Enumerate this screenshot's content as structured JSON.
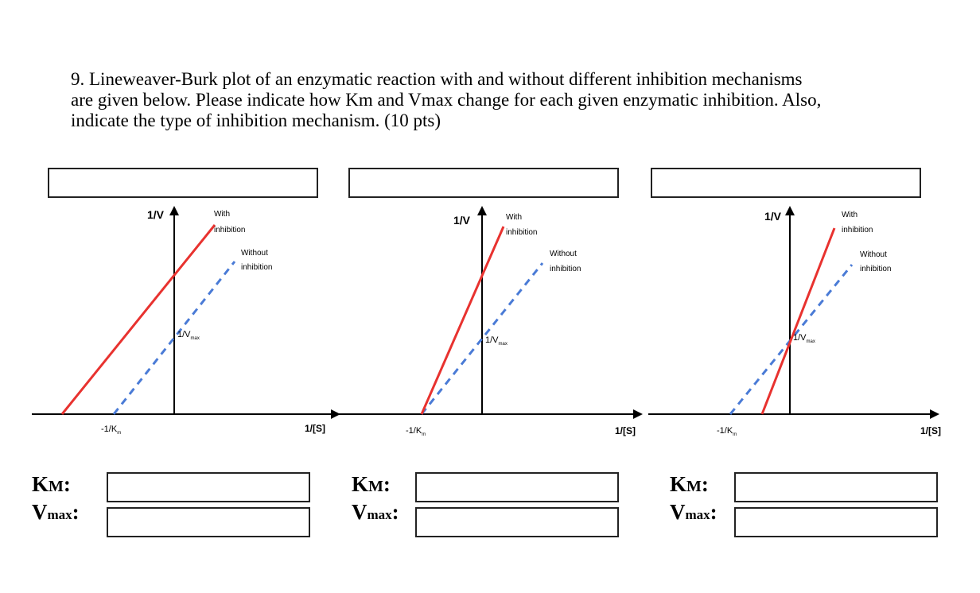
{
  "question": {
    "lines": [
      "9. Lineweaver-Burk plot of an enzymatic reaction with and without different inhibition mechanisms",
      "are given below. Please indicate how Km and Vmax change for each given enzymatic inhibition. Also,",
      "indicate the type of inhibition mechanism. (10 pts)"
    ]
  },
  "plot_labels": {
    "y_axis": "1/V",
    "x_axis": "1/[S]",
    "with": "With",
    "inhibition": "inhibition",
    "without": "Without",
    "neg_km": "-1/K",
    "km_sub": "m",
    "inv_vmax": "1/V",
    "vmax_sub": "max"
  },
  "answer_labels": {
    "km_main": "K",
    "km_small": "M",
    "km_colon": ":",
    "vmax_main": "V",
    "vmax_sub": "max",
    "vmax_colon": ":"
  },
  "colors": {
    "with_inhibition": "#e8322f",
    "without_inhibition": "#4a7bd6",
    "axis": "#000000"
  },
  "chart_data": [
    {
      "type": "line",
      "series": [
        {
          "name": "With inhibition",
          "x": [
            -1.0,
            1.0
          ],
          "y": [
            0.0,
            1.57
          ]
        },
        {
          "name": "Without inhibition",
          "x": [
            -0.55,
            0.5
          ],
          "y": [
            0.0,
            1.15
          ]
        }
      ],
      "xlabel": "1/[S]",
      "ylabel": "1/V"
    },
    {
      "type": "line",
      "series": [
        {
          "name": "With inhibition",
          "x": [
            -0.55,
            0.25
          ],
          "y": [
            0.0,
            1.6
          ]
        },
        {
          "name": "Without inhibition",
          "x": [
            -0.55,
            0.55
          ],
          "y": [
            0.0,
            1.2
          ]
        }
      ],
      "xlabel": "1/[S]",
      "ylabel": "1/V"
    },
    {
      "type": "line",
      "series": [
        {
          "name": "With inhibition",
          "x": [
            -0.25,
            0.42
          ],
          "y": [
            0.0,
            1.6
          ]
        },
        {
          "name": "Without inhibition",
          "x": [
            -0.55,
            0.55
          ],
          "y": [
            0.0,
            1.2
          ]
        }
      ],
      "xlabel": "1/[S]",
      "ylabel": "1/V"
    }
  ]
}
